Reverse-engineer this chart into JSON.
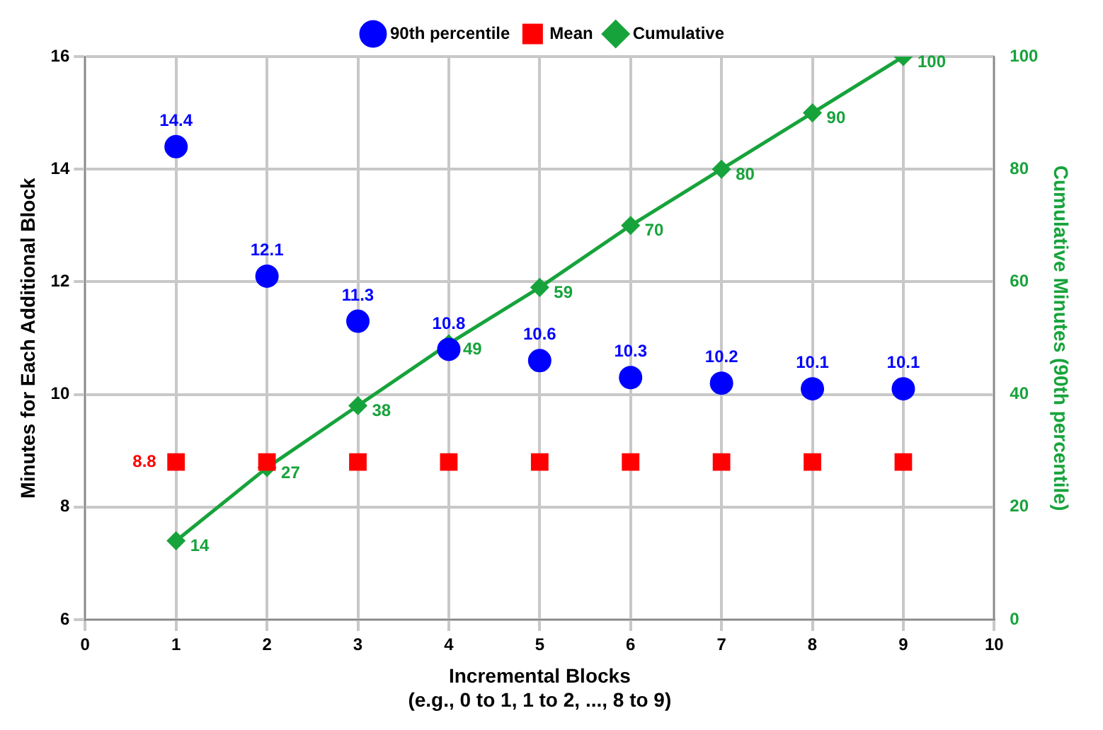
{
  "chart_data": {
    "type": "scatter",
    "xlabel": "Incremental Blocks\n(e.g., 0 to 1, 1 to 2, ..., 8 to 9)",
    "ylabel": "Minutes for Each Additional Block",
    "y2label": "Cumulative Minutes (90th percentile)",
    "x": [
      1,
      2,
      3,
      4,
      5,
      6,
      7,
      8,
      9
    ],
    "series": [
      {
        "name": "90th percentile",
        "type": "scatter",
        "marker": "circle",
        "color": "#0000ff",
        "values": [
          14.4,
          12.1,
          11.3,
          10.8,
          10.6,
          10.3,
          10.2,
          10.1,
          10.1
        ],
        "value_labels": [
          "14.4",
          "12.1",
          "11.3",
          "10.8",
          "10.6",
          "10.3",
          "10.2",
          "10.1",
          "10.1"
        ]
      },
      {
        "name": "Mean",
        "type": "scatter",
        "marker": "square",
        "color": "#ff0000",
        "values": [
          8.8,
          8.8,
          8.8,
          8.8,
          8.8,
          8.8,
          8.8,
          8.8,
          8.8
        ],
        "value_labels": [
          "8.8",
          null,
          null,
          null,
          null,
          null,
          null,
          null,
          null
        ]
      },
      {
        "name": "Cumulative",
        "type": "line",
        "marker": "diamond",
        "axis": "y2",
        "color": "#17a33b",
        "values": [
          14,
          27,
          38,
          49,
          59,
          70,
          80,
          90,
          100
        ],
        "value_labels": [
          "14",
          "27",
          "38",
          "49",
          "59",
          "70",
          "80",
          "90",
          "100"
        ]
      }
    ],
    "xlim": [
      0,
      10
    ],
    "xticks": [
      0,
      1,
      2,
      3,
      4,
      5,
      6,
      7,
      8,
      9,
      10
    ],
    "ylim": [
      6,
      16
    ],
    "yticks": [
      6,
      8,
      10,
      12,
      14,
      16
    ],
    "y2lim": [
      0,
      100
    ],
    "y2ticks": [
      0,
      20,
      40,
      60,
      80,
      100
    ],
    "grid": true,
    "legend": "top"
  }
}
